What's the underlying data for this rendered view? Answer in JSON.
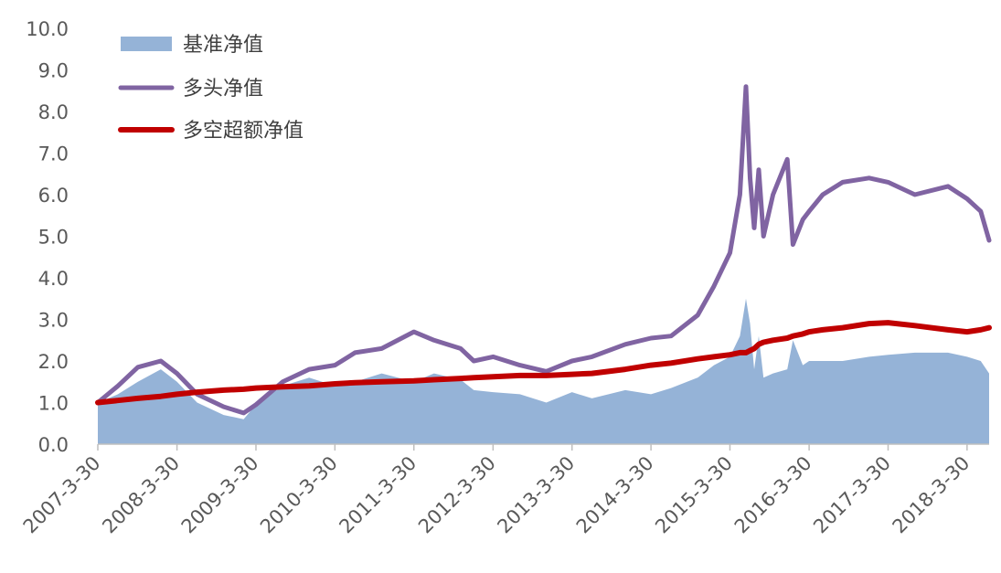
{
  "chart_data": {
    "type": "area",
    "title": "",
    "xlabel": "",
    "ylabel": "",
    "ylim": [
      0,
      10
    ],
    "yticks": [
      "0.0",
      "1.0",
      "2.0",
      "3.0",
      "4.0",
      "5.0",
      "6.0",
      "7.0",
      "8.0",
      "9.0",
      "10.0"
    ],
    "xticks": [
      "2007-3-30",
      "2008-3-30",
      "2009-3-30",
      "2010-3-30",
      "2011-3-30",
      "2012-3-30",
      "2013-3-30",
      "2014-3-30",
      "2015-3-30",
      "2016-3-30",
      "2017-3-30",
      "2018-3-30"
    ],
    "grid": false,
    "legend_position": "top-left",
    "x": [
      "2007-03-30",
      "2007-07-01",
      "2007-10-01",
      "2008-01-15",
      "2008-03-30",
      "2008-07-01",
      "2008-11-01",
      "2009-02-01",
      "2009-03-30",
      "2009-08-01",
      "2009-12-01",
      "2010-03-30",
      "2010-07-01",
      "2010-11-01",
      "2011-03-30",
      "2011-07-01",
      "2011-11-01",
      "2012-01-01",
      "2012-03-30",
      "2012-08-01",
      "2012-12-01",
      "2013-03-30",
      "2013-06-30",
      "2013-12-01",
      "2014-03-30",
      "2014-07-01",
      "2014-11-01",
      "2015-01-15",
      "2015-03-30",
      "2015-05-15",
      "2015-06-12",
      "2015-07-01",
      "2015-07-20",
      "2015-08-10",
      "2015-09-01",
      "2015-10-15",
      "2015-12-20",
      "2016-01-15",
      "2016-03-01",
      "2016-03-30",
      "2016-06-01",
      "2016-09-01",
      "2017-01-01",
      "2017-03-30",
      "2017-08-01",
      "2018-01-01",
      "2018-03-30",
      "2018-06-01",
      "2018-07-10"
    ],
    "series": [
      {
        "name": "基准净值",
        "style": "area",
        "color": "#95b3d7",
        "values": [
          1.0,
          1.2,
          1.5,
          1.8,
          1.5,
          1.0,
          0.7,
          0.6,
          0.95,
          1.4,
          1.6,
          1.4,
          1.5,
          1.7,
          1.5,
          1.7,
          1.55,
          1.3,
          1.25,
          1.2,
          1.0,
          1.25,
          1.1,
          1.3,
          1.2,
          1.35,
          1.6,
          1.9,
          2.1,
          2.6,
          3.5,
          2.9,
          1.8,
          2.6,
          1.6,
          1.7,
          1.8,
          2.5,
          1.9,
          2.0,
          2.0,
          2.0,
          2.1,
          2.15,
          2.2,
          2.2,
          2.1,
          2.0,
          1.7
        ]
      },
      {
        "name": "多头净值",
        "style": "line",
        "color": "#8064a2",
        "values": [
          1.0,
          1.4,
          1.85,
          2.0,
          1.7,
          1.2,
          0.9,
          0.75,
          0.95,
          1.5,
          1.8,
          1.9,
          2.2,
          2.3,
          2.7,
          2.5,
          2.3,
          2.0,
          2.1,
          1.9,
          1.75,
          2.0,
          2.1,
          2.4,
          2.55,
          2.6,
          3.1,
          3.8,
          4.6,
          6.0,
          8.6,
          6.4,
          5.2,
          6.6,
          5.0,
          6.0,
          6.85,
          4.8,
          5.4,
          5.6,
          6.0,
          6.3,
          6.4,
          6.3,
          6.0,
          6.2,
          5.9,
          5.6,
          4.9
        ]
      },
      {
        "name": "多空超额净值",
        "style": "line",
        "color": "#c00000",
        "values": [
          1.0,
          1.05,
          1.1,
          1.15,
          1.2,
          1.25,
          1.3,
          1.32,
          1.35,
          1.38,
          1.4,
          1.45,
          1.48,
          1.5,
          1.52,
          1.55,
          1.58,
          1.6,
          1.62,
          1.65,
          1.65,
          1.68,
          1.7,
          1.8,
          1.9,
          1.95,
          2.05,
          2.1,
          2.15,
          2.2,
          2.2,
          2.25,
          2.3,
          2.4,
          2.45,
          2.5,
          2.55,
          2.6,
          2.65,
          2.7,
          2.75,
          2.8,
          2.9,
          2.92,
          2.85,
          2.75,
          2.7,
          2.75,
          2.8
        ]
      }
    ]
  }
}
